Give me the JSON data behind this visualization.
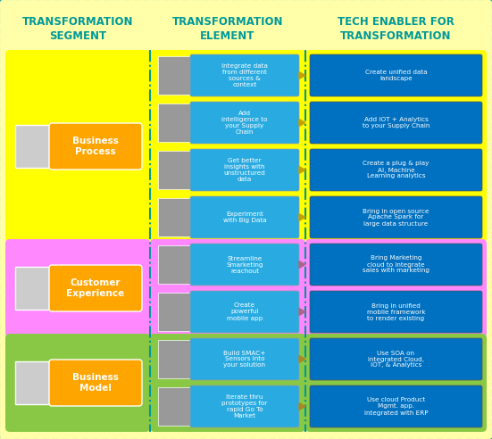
{
  "col1_header": "TRANSFORMATION\nSEGMENT",
  "col2_header": "TRANSFORMATION\nELEMENT",
  "col3_header": "TECH ENABLER FOR\nTRANSFORMATION",
  "segments": [
    {
      "name": "Business\nProcess",
      "bg_color": "#FFFF00",
      "label_bg": "#FFA500",
      "arrow_color": "#C8A000",
      "n_items": 4,
      "elements": [
        "Integrate data\nfrom different\nsources &\ncontext",
        "Add\nintelligence to\nyour Supply\nChain",
        "Get better\ninsights with\nunstructured\ndata",
        "Experiment\nwith Big Data"
      ],
      "tech_enablers": [
        "Create unified data\nlandscape",
        "Add IOT + Analytics\nto your Supply Chain",
        "Create a plug & play\nAI, Machine\nLearning analytics",
        "Bring in open source\nApache Spark for\nlarge data structure"
      ]
    },
    {
      "name": "Customer\nExperience",
      "bg_color": "#FF88FF",
      "label_bg": "#FFA500",
      "arrow_color": "#AA6688",
      "n_items": 2,
      "elements": [
        "Streamline\nSmarketing\nreachout",
        "Create\npowerful\nmobile app"
      ],
      "tech_enablers": [
        "Bring Marketing\ncloud to integrate\nsales with marketing",
        "Bring in unified\nmobile framework\nto render existing"
      ]
    },
    {
      "name": "Business\nModel",
      "bg_color": "#88C844",
      "label_bg": "#FFA500",
      "arrow_color": "#AA8822",
      "n_items": 2,
      "elements": [
        "Build SMAC+\nSensors into\nyour solution",
        "Iterate thru\nprototypes for\nrapid Go To\nMarket"
      ],
      "tech_enablers": [
        "Use SOA on\nintegrated Cloud,\nIOT, & Analytics",
        "Use cloud Product\nMgmt. app.\nintegrated with ERP"
      ]
    }
  ],
  "element_box_color": "#29ABE2",
  "tech_box_color": "#0070C0",
  "outer_bg": "#FFFFAA",
  "outer_border_color": "#009999",
  "col_divider_color": "#009999",
  "header_text_color": "#009999",
  "element_text_color": "#FFFFFF",
  "tech_text_color": "#FFFFFF",
  "segment_text_color": "#FFFFFF",
  "fig_w": 5.51,
  "fig_h": 4.92,
  "dpi": 100
}
